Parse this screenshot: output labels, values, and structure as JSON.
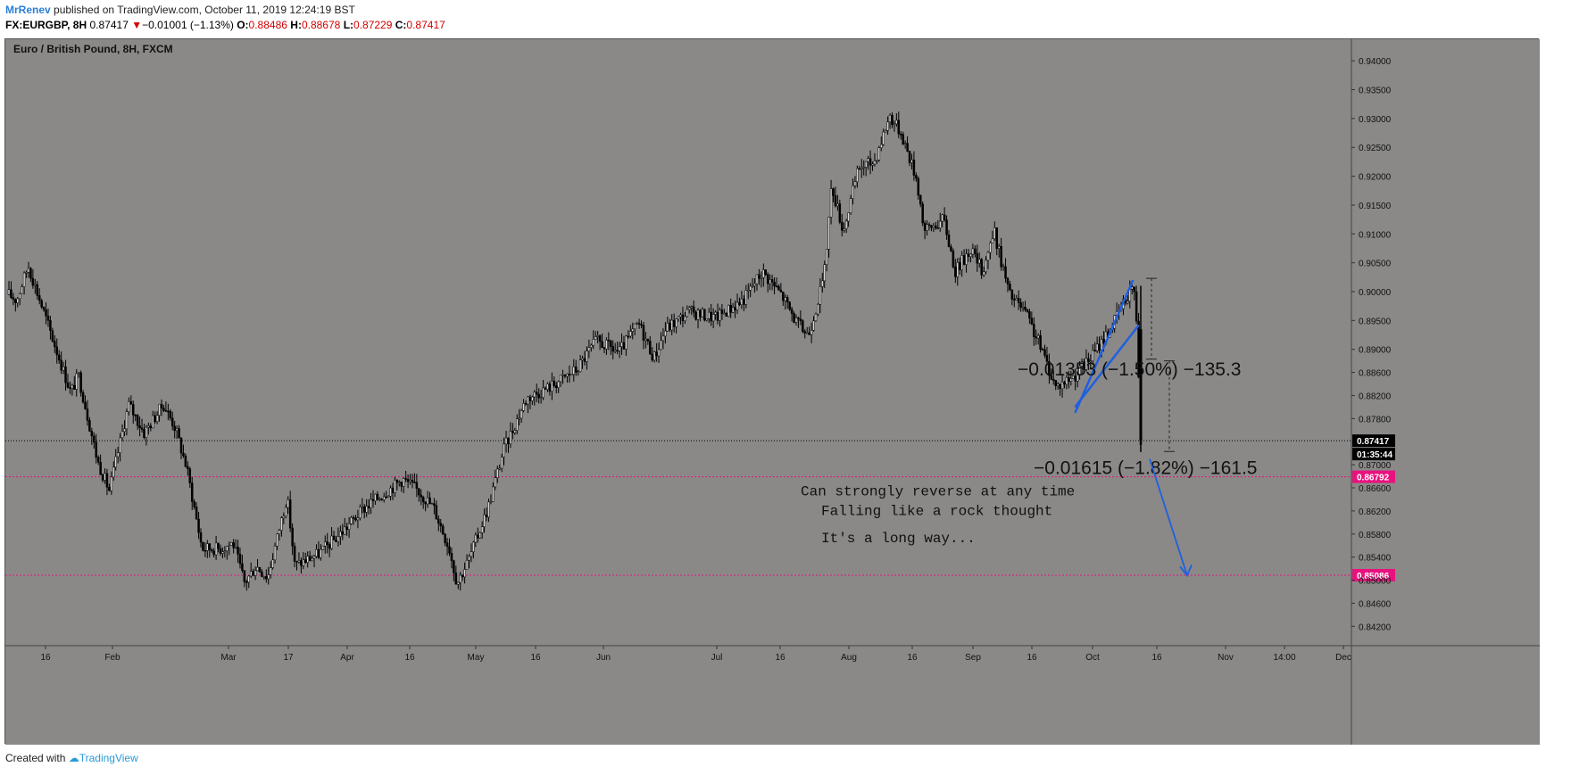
{
  "header": {
    "author": "MrRenev",
    "published_text": "published on TradingView.com, October 11, 2019 12:24:19 BST",
    "symbol": "FX:EURGBP, 8H",
    "last": "0.87417",
    "change_arrow": "▼",
    "change": "−0.01001 (−1.13%)",
    "open_label": "O:",
    "open": "0.88486",
    "high_label": "H:",
    "high": "0.88678",
    "low_label": "L:",
    "low": "0.87229",
    "close_label": "C:",
    "close": "0.87417"
  },
  "footer": {
    "created_with": "Created with",
    "brand": "TradingView"
  },
  "chart_data": {
    "type": "candlestick",
    "title": "Euro / British Pound, 8H, FXCM",
    "ylim": [
      0.8405,
      0.9425
    ],
    "y_ticks": [
      "0.94000",
      "0.93500",
      "0.93000",
      "0.92500",
      "0.92000",
      "0.91500",
      "0.91000",
      "0.90500",
      "0.90000",
      "0.89500",
      "0.89000",
      "0.88600",
      "0.88200",
      "0.87800",
      "0.87000",
      "0.86600",
      "0.86200",
      "0.85800",
      "0.85400",
      "0.85000",
      "0.84600",
      "0.84200"
    ],
    "x_ticks": [
      "16",
      "Feb",
      "Mar",
      "17",
      "Apr",
      "16",
      "May",
      "16",
      "Jun",
      "Jul",
      "16",
      "Aug",
      "16",
      "Sep",
      "16",
      "Oct",
      "16",
      "Nov",
      "14:00",
      "Dec"
    ],
    "price_path": [
      {
        "t": 0,
        "p": 0.8995
      },
      {
        "t": 2,
        "p": 0.8985
      },
      {
        "t": 5,
        "p": 0.9045
      },
      {
        "t": 8,
        "p": 0.8985
      },
      {
        "t": 12,
        "p": 0.8905
      },
      {
        "t": 16,
        "p": 0.8825
      },
      {
        "t": 18,
        "p": 0.8855
      },
      {
        "t": 23,
        "p": 0.8705
      },
      {
        "t": 26,
        "p": 0.8655
      },
      {
        "t": 31,
        "p": 0.8805
      },
      {
        "t": 35,
        "p": 0.8755
      },
      {
        "t": 40,
        "p": 0.8805
      },
      {
        "t": 43,
        "p": 0.8765
      },
      {
        "t": 46,
        "p": 0.8695
      },
      {
        "t": 50,
        "p": 0.8555
      },
      {
        "t": 55,
        "p": 0.8555
      },
      {
        "t": 58,
        "p": 0.8565
      },
      {
        "t": 61,
        "p": 0.8495
      },
      {
        "t": 64,
        "p": 0.8525
      },
      {
        "t": 67,
        "p": 0.8505
      },
      {
        "t": 72,
        "p": 0.8645
      },
      {
        "t": 74,
        "p": 0.8525
      },
      {
        "t": 80,
        "p": 0.8545
      },
      {
        "t": 85,
        "p": 0.8575
      },
      {
        "t": 92,
        "p": 0.8625
      },
      {
        "t": 98,
        "p": 0.8655
      },
      {
        "t": 102,
        "p": 0.8675
      },
      {
        "t": 106,
        "p": 0.8655
      },
      {
        "t": 110,
        "p": 0.8625
      },
      {
        "t": 114,
        "p": 0.8555
      },
      {
        "t": 116,
        "p": 0.8495
      },
      {
        "t": 119,
        "p": 0.8535
      },
      {
        "t": 124,
        "p": 0.8625
      },
      {
        "t": 128,
        "p": 0.8725
      },
      {
        "t": 134,
        "p": 0.8815
      },
      {
        "t": 140,
        "p": 0.8835
      },
      {
        "t": 147,
        "p": 0.8865
      },
      {
        "t": 152,
        "p": 0.8915
      },
      {
        "t": 158,
        "p": 0.8895
      },
      {
        "t": 163,
        "p": 0.8945
      },
      {
        "t": 167,
        "p": 0.8885
      },
      {
        "t": 170,
        "p": 0.8935
      },
      {
        "t": 176,
        "p": 0.8965
      },
      {
        "t": 183,
        "p": 0.8955
      },
      {
        "t": 190,
        "p": 0.8985
      },
      {
        "t": 195,
        "p": 0.9035
      },
      {
        "t": 200,
        "p": 0.8995
      },
      {
        "t": 204,
        "p": 0.8945
      },
      {
        "t": 207,
        "p": 0.8925
      },
      {
        "t": 211,
        "p": 0.9025
      },
      {
        "t": 213,
        "p": 0.9185
      },
      {
        "t": 216,
        "p": 0.9105
      },
      {
        "t": 220,
        "p": 0.9215
      },
      {
        "t": 224,
        "p": 0.9225
      },
      {
        "t": 228,
        "p": 0.9305
      },
      {
        "t": 231,
        "p": 0.9275
      },
      {
        "t": 235,
        "p": 0.9195
      },
      {
        "t": 237,
        "p": 0.9105
      },
      {
        "t": 242,
        "p": 0.9125
      },
      {
        "t": 245,
        "p": 0.9035
      },
      {
        "t": 249,
        "p": 0.9075
      },
      {
        "t": 252,
        "p": 0.9035
      },
      {
        "t": 255,
        "p": 0.9105
      },
      {
        "t": 259,
        "p": 0.8995
      },
      {
        "t": 263,
        "p": 0.8965
      },
      {
        "t": 267,
        "p": 0.8905
      },
      {
        "t": 271,
        "p": 0.8835
      },
      {
        "t": 276,
        "p": 0.8855
      },
      {
        "t": 280,
        "p": 0.8885
      },
      {
        "t": 285,
        "p": 0.8935
      },
      {
        "t": 289,
        "p": 0.8985
      },
      {
        "t": 291,
        "p": 0.9015
      },
      {
        "t": 292,
        "p": 0.8945
      },
      {
        "t": 293,
        "p": 0.8745
      }
    ],
    "levels": [
      {
        "price": 0.87417,
        "label": "0.87417",
        "style": "current"
      },
      {
        "price": 0.86792,
        "label": "0.86792",
        "style": "support"
      },
      {
        "price": 0.85086,
        "label": "0.85086",
        "style": "support"
      }
    ],
    "countdown": "01:35:44",
    "annotations": {
      "measure_1": "−0.01353 (−1.50%) −135.3",
      "measure_2": "−0.01615 (−1.82%) −161.5",
      "notes": [
        "Can strongly reverse at any time",
        "Falling like a rock thought",
        "It's a long way..."
      ]
    },
    "colors": {
      "background": "#8a8988",
      "candles": "#000000",
      "channel": "#1f5fe0",
      "level_marker": "#e8127e",
      "current_marker": "#000000"
    }
  }
}
